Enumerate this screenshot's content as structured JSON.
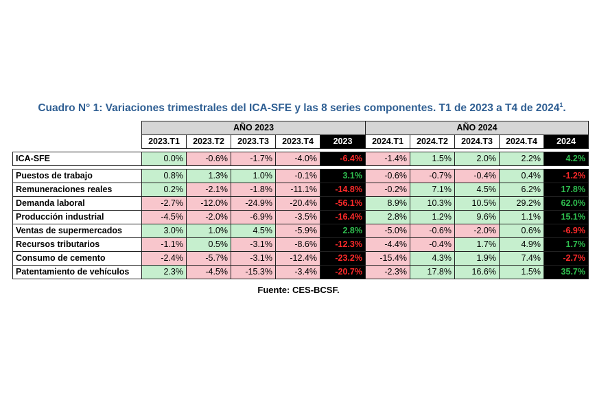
{
  "title": "Cuadro N° 1: Variaciones trimestrales del ICA-SFE y las 8 series componentes. T1 de 2023 a T4 de 2024",
  "title_sup": "1",
  "title_end": ".",
  "year_groups": [
    "AÑO 2023",
    "AÑO 2024"
  ],
  "columns": [
    "2023.T1",
    "2023.T2",
    "2023.T3",
    "2023.T4",
    "2023",
    "2024.T1",
    "2024.T2",
    "2024.T3",
    "2024.T4",
    "2024"
  ],
  "rows": [
    {
      "label": "ICA-SFE",
      "values": [
        "0.0%",
        "-0.6%",
        "-1.7%",
        "-4.0%",
        "-6.4%",
        "-1.4%",
        "1.5%",
        "2.0%",
        "2.2%",
        "4.2%"
      ]
    },
    {
      "label": "Puestos de trabajo",
      "values": [
        "0.8%",
        "1.3%",
        "1.0%",
        "-0.1%",
        "3.1%",
        "-0.6%",
        "-0.7%",
        "-0.4%",
        "0.4%",
        "-1.2%"
      ]
    },
    {
      "label": "Remuneraciones reales",
      "values": [
        "0.2%",
        "-2.1%",
        "-1.8%",
        "-11.1%",
        "-14.8%",
        "-0.2%",
        "7.1%",
        "4.5%",
        "6.2%",
        "17.8%"
      ]
    },
    {
      "label": "Demanda laboral",
      "values": [
        "-2.7%",
        "-12.0%",
        "-24.9%",
        "-20.4%",
        "-56.1%",
        "8.9%",
        "10.3%",
        "10.5%",
        "29.2%",
        "62.0%"
      ]
    },
    {
      "label": "Producción industrial",
      "values": [
        "-4.5%",
        "-2.0%",
        "-6.9%",
        "-3.5%",
        "-16.4%",
        "2.8%",
        "1.2%",
        "9.6%",
        "1.1%",
        "15.1%"
      ]
    },
    {
      "label": "Ventas de supermercados",
      "values": [
        "3.0%",
        "1.0%",
        "4.5%",
        "-5.9%",
        "2.8%",
        "-5.0%",
        "-0.6%",
        "-2.0%",
        "0.6%",
        "-6.9%"
      ]
    },
    {
      "label": "Recursos tributarios",
      "values": [
        "-1.1%",
        "0.5%",
        "-3.1%",
        "-8.6%",
        "-12.3%",
        "-4.4%",
        "-0.4%",
        "1.7%",
        "4.9%",
        "1.7%"
      ]
    },
    {
      "label": "Consumo de cemento",
      "values": [
        "-2.4%",
        "-5.7%",
        "-3.1%",
        "-12.4%",
        "-23.2%",
        "-15.4%",
        "4.3%",
        "1.9%",
        "7.4%",
        "-2.7%"
      ]
    },
    {
      "label": "Patentamiento de vehículos",
      "values": [
        "2.3%",
        "-4.5%",
        "-15.3%",
        "-3.4%",
        "-20.7%",
        "-2.3%",
        "17.8%",
        "16.6%",
        "1.5%",
        "35.7%"
      ]
    }
  ],
  "colors": {
    "title": "#2f5f93",
    "positive_fill": "#c6efce",
    "negative_fill": "#f8c6cc",
    "annual_fill": "#000000",
    "annual_positive_text": "#2fbf4f",
    "annual_negative_text": "#ff2a2a",
    "year_header_fill": "#d6d6d6"
  },
  "source": "Fuente: CES-BCSF."
}
